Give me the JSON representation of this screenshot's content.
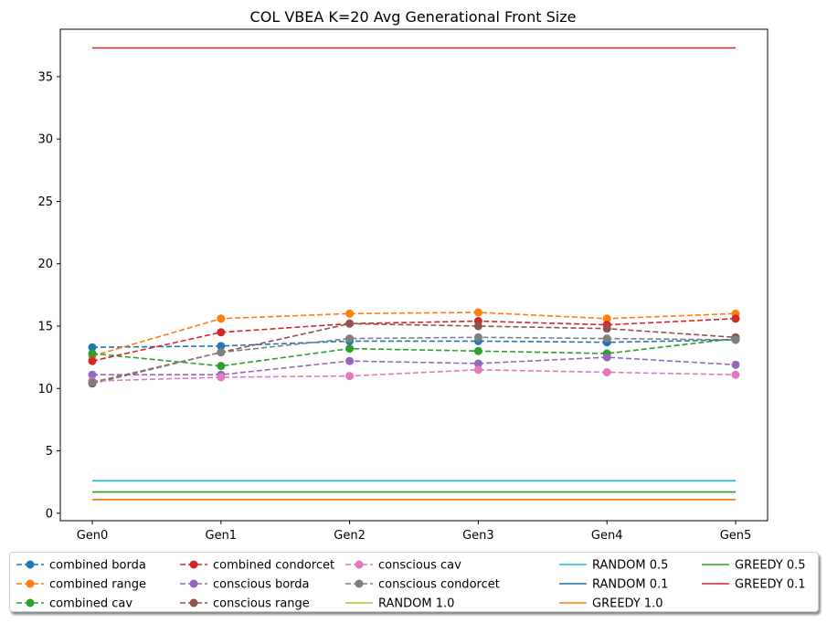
{
  "chart_data": {
    "type": "line",
    "title": "COL VBEA K=20 Avg Generational Front Size",
    "xlabel": "",
    "ylabel": "",
    "categories": [
      "Gen0",
      "Gen1",
      "Gen2",
      "Gen3",
      "Gen4",
      "Gen5"
    ],
    "ylim": [
      -0.6,
      38.8
    ],
    "yticks": [
      0,
      5,
      10,
      15,
      20,
      25,
      30,
      35
    ],
    "grid": false,
    "legend_position": "bottom",
    "series": [
      {
        "name": "combined borda",
        "color": "#1f77b4",
        "style": "dashed-marker",
        "values": [
          13.3,
          13.4,
          13.8,
          13.8,
          13.7,
          13.9
        ]
      },
      {
        "name": "combined range",
        "color": "#ff7f0e",
        "style": "dashed-marker",
        "values": [
          12.6,
          15.6,
          16.0,
          16.1,
          15.6,
          16.0
        ]
      },
      {
        "name": "combined cav",
        "color": "#2ca02c",
        "style": "dashed-marker",
        "values": [
          12.8,
          11.8,
          13.2,
          13.0,
          12.8,
          14.0
        ]
      },
      {
        "name": "combined condorcet",
        "color": "#d62728",
        "style": "dashed-marker",
        "values": [
          12.2,
          14.5,
          15.2,
          15.4,
          15.1,
          15.6
        ]
      },
      {
        "name": "conscious borda",
        "color": "#9467bd",
        "style": "dashed-marker",
        "values": [
          11.1,
          11.1,
          12.2,
          12.0,
          12.5,
          11.9
        ]
      },
      {
        "name": "conscious range",
        "color": "#8c564b",
        "style": "dashed-marker",
        "values": [
          10.4,
          12.9,
          15.2,
          15.0,
          14.8,
          14.1
        ]
      },
      {
        "name": "conscious cav",
        "color": "#e377c2",
        "style": "dashed-marker",
        "values": [
          10.6,
          10.9,
          11.0,
          11.5,
          11.3,
          11.1
        ]
      },
      {
        "name": "conscious condorcet",
        "color": "#7f7f7f",
        "style": "dashed-marker",
        "values": [
          10.5,
          12.9,
          14.0,
          14.1,
          14.0,
          13.9
        ]
      },
      {
        "name": "RANDOM 1.0",
        "color": "#bcbd22",
        "style": "solid",
        "values": [
          1.1,
          1.1,
          1.1,
          1.1,
          1.1,
          1.1
        ]
      },
      {
        "name": "RANDOM 0.5",
        "color": "#17becf",
        "style": "solid",
        "values": [
          2.6,
          2.6,
          2.6,
          2.6,
          2.6,
          2.6
        ]
      },
      {
        "name": "RANDOM 0.1",
        "color": "#1f77b4",
        "style": "solid",
        "values": [
          1.1,
          1.1,
          1.1,
          1.1,
          1.1,
          1.1
        ]
      },
      {
        "name": "GREEDY 1.0",
        "color": "#ff7f0e",
        "style": "solid",
        "values": [
          1.1,
          1.1,
          1.1,
          1.1,
          1.1,
          1.1
        ]
      },
      {
        "name": "GREEDY 0.5",
        "color": "#2ca02c",
        "style": "solid",
        "values": [
          1.7,
          1.7,
          1.7,
          1.7,
          1.7,
          1.7
        ]
      },
      {
        "name": "GREEDY 0.1",
        "color": "#d62728",
        "style": "solid",
        "values": [
          37.3,
          37.3,
          37.3,
          37.3,
          37.3,
          37.3
        ]
      }
    ]
  }
}
